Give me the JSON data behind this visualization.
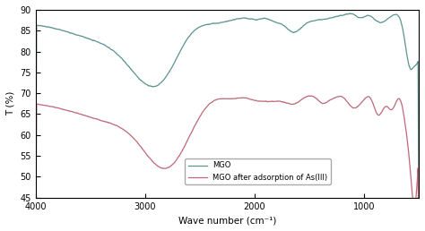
{
  "xlabel": "Wave number (cm⁻¹)",
  "ylabel": "T (%)",
  "xlim": [
    4000,
    500
  ],
  "ylim": [
    45,
    90
  ],
  "yticks": [
    45,
    50,
    55,
    60,
    65,
    70,
    75,
    80,
    85,
    90
  ],
  "xticks": [
    4000,
    3000,
    2000,
    1000
  ],
  "mgo_color": "#5a9490",
  "mgo_after_color": "#c06878",
  "legend_labels": [
    "MGO",
    "MGO after adsorption of As(III)"
  ],
  "bg_color": "#ffffff",
  "lw": 0.9
}
